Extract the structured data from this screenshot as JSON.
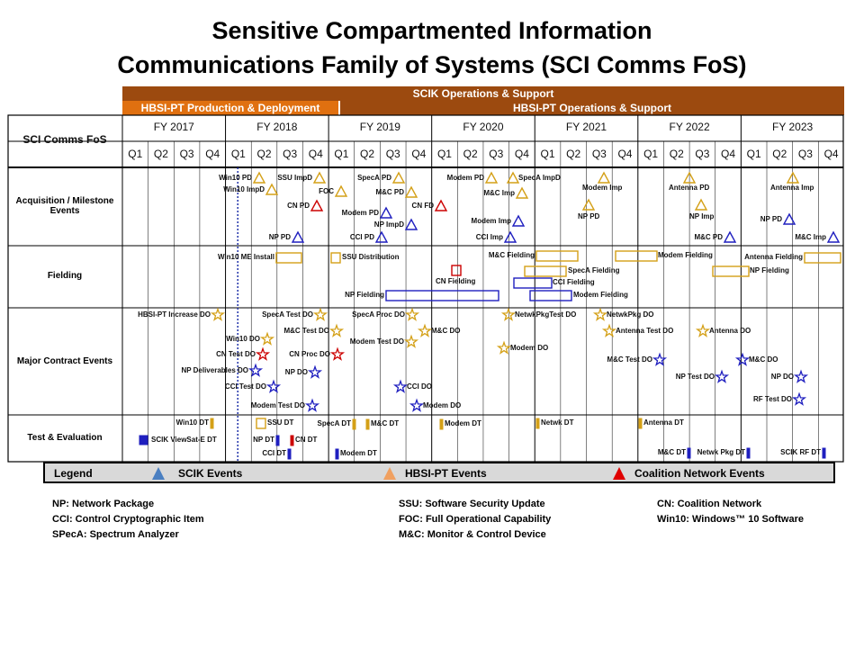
{
  "title_line1": "Sensitive Compartmented Information",
  "title_line2": "Communications Family of Systems (SCI Comms FoS)",
  "bands": {
    "scik": "SCIK Operations & Support",
    "hbsi_prod": "HBSI-PT Production & Deployment",
    "hbsi_ops": "HBSI-PT Operations & Support"
  },
  "corner_label": "SCI Comms FoS",
  "fiscal_years": [
    "FY 2017",
    "FY 2018",
    "FY 2019",
    "FY 2020",
    "FY 2021",
    "FY 2022",
    "FY 2023"
  ],
  "quarters": [
    "Q1",
    "Q2",
    "Q3",
    "Q4"
  ],
  "rows": [
    "Acquisition / Milestone Events",
    "Fielding",
    "Major Contract Events",
    "Test & Evaluation"
  ],
  "colors": {
    "scik": "#1f1fbf",
    "hbsi": "#d4a017",
    "coalition": "#cc0000",
    "band": "#9c4a0f",
    "band2": "#e07010"
  },
  "events": {
    "acq": [
      "Win10 PD",
      "Win10 ImpD",
      "NP PD",
      "SSU ImpD",
      "FOC",
      "CN PD",
      "SpecA PD",
      "M&C PD",
      "Modem PD",
      "NP ImpD",
      "CCI PD",
      "CN FD",
      "Modem PD",
      "M&C Imp",
      "Modem Imp",
      "CCI Imp",
      "SpecA ImpD",
      "Modem Imp",
      "NP PD",
      "Antenna PD",
      "NP Imp",
      "M&C PD",
      "Antenna Imp",
      "NP PD",
      "M&C Imp"
    ],
    "field": [
      "Win10 ME Install",
      "SSU Distribution",
      "CN Fielding",
      "NP Fielding",
      "M&C Fielding",
      "SpecA Fielding",
      "CCI Fielding",
      "Modem Fielding",
      "Modem Fielding",
      "Antenna Fielding",
      "NP Fielding"
    ],
    "mce": [
      "HBSI-PT Increase DO",
      "SpecA Test DO",
      "Win10 DO",
      "M&C Test DO",
      "CN Test DO",
      "NP Deliverables DO",
      "CCI Test DO",
      "Modem Test DO",
      "SpecA Proc DO",
      "CN Proc DO",
      "NP DO",
      "Modem Test DO",
      "M&C DO",
      "CCI DO",
      "Modem DO",
      "NetwkPkgTest DO",
      "Modem DO",
      "NetwkPkg DO",
      "Antenna Test DO",
      "Antenna DO",
      "M&C Test DO",
      "NP Test DO",
      "M&C DO",
      "NP DO",
      "RF Test DO"
    ],
    "te": [
      "Win10 DT",
      "SCIK ViewSat-E DT",
      "SSU DT",
      "NP DT",
      "CN DT",
      "CCI DT",
      "SpecA DT",
      "M&C DT",
      "Modem DT",
      "Modem DT",
      "Netwk DT",
      "Antenna DT",
      "M&C DT",
      "Netwk Pkg DT",
      "SCIK RF DT"
    ]
  },
  "legend": {
    "title": "Legend",
    "scik": "SCIK Events",
    "hbsi": "HBSI-PT Events",
    "coalition": "Coalition Network Events"
  },
  "abbreviations": {
    "col1": [
      "NP:  Network Package",
      "CCI:  Control Cryptographic Item",
      "SPecA:  Spectrum Analyzer"
    ],
    "col2": [
      "SSU:  Software Security Update",
      "FOC:  Full Operational Capability",
      "M&C:  Monitor & Control Device"
    ],
    "col3": [
      "CN:  Coalition Network",
      "Win10:  Windows™ 10 Software"
    ]
  }
}
